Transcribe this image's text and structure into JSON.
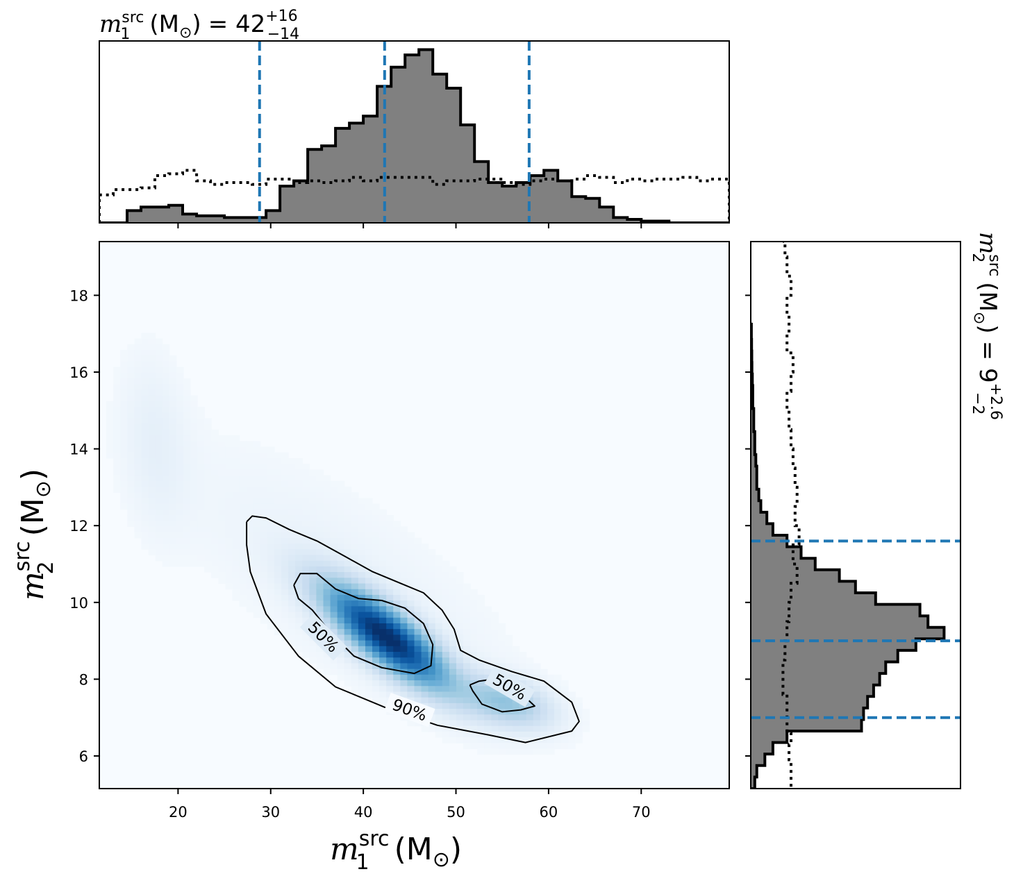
{
  "chart_data": [
    {
      "panel": "top-marginal",
      "type": "histogram",
      "title": {
        "symbol": "m",
        "superscript": "src",
        "subscript": "1",
        "unit": "(M",
        "unit_sub": "⊙",
        "unit_close": ")",
        "eq": "= 42",
        "plus": "+16",
        "minus": "−14"
      },
      "xlim": [
        11.5,
        79.5
      ],
      "x_ticks": [
        20,
        30,
        40,
        50,
        60,
        70
      ],
      "quantile_lines": [
        28.8,
        42.3,
        57.9
      ],
      "posterior": {
        "style": "filled-step",
        "bin_edges": [
          11.5,
          13,
          14.5,
          16,
          17.5,
          19,
          20.5,
          22,
          23.5,
          25,
          26.5,
          28,
          29.5,
          31,
          32.5,
          34,
          35.5,
          37,
          38.5,
          40,
          41.5,
          43,
          44.5,
          46,
          47.5,
          49,
          50.5,
          52,
          53.5,
          55,
          56.5,
          58,
          59.5,
          61,
          62.5,
          64,
          65.5,
          67,
          68.5,
          70,
          71.5,
          73,
          74.5,
          76,
          77.5,
          79.5
        ],
        "heights": [
          0,
          0,
          0.07,
          0.09,
          0.09,
          0.1,
          0.05,
          0.04,
          0.04,
          0.03,
          0.03,
          0.03,
          0.07,
          0.21,
          0.24,
          0.42,
          0.44,
          0.54,
          0.57,
          0.61,
          0.78,
          0.89,
          0.96,
          0.99,
          0.85,
          0.77,
          0.56,
          0.35,
          0.23,
          0.21,
          0.23,
          0.27,
          0.3,
          0.24,
          0.15,
          0.14,
          0.09,
          0.03,
          0.02,
          0.01,
          0.01,
          0,
          0,
          0,
          0
        ]
      },
      "prior": {
        "style": "dotted-step",
        "bin_edges": [
          11.5,
          13,
          14.5,
          16,
          17.5,
          19,
          20.5,
          22,
          23.5,
          25,
          26.5,
          28,
          29.5,
          31,
          32.5,
          34,
          35.5,
          37,
          38.5,
          40,
          41.5,
          43,
          44.5,
          46,
          47.5,
          49,
          50.5,
          52,
          53.5,
          55,
          56.5,
          58,
          59.5,
          61,
          62.5,
          64,
          65.5,
          67,
          68.5,
          70,
          71.5,
          73,
          74.5,
          76,
          77.5,
          79.5
        ],
        "heights": [
          0.16,
          0.19,
          0.19,
          0.2,
          0.27,
          0.28,
          0.3,
          0.24,
          0.22,
          0.23,
          0.23,
          0.22,
          0.25,
          0.25,
          0.23,
          0.24,
          0.23,
          0.24,
          0.26,
          0.24,
          0.26,
          0.26,
          0.26,
          0.26,
          0.22,
          0.24,
          0.24,
          0.25,
          0.25,
          0.23,
          0.22,
          0.24,
          0.25,
          0.24,
          0.25,
          0.27,
          0.26,
          0.23,
          0.25,
          0.24,
          0.25,
          0.25,
          0.26,
          0.24,
          0.25
        ]
      }
    },
    {
      "panel": "joint",
      "type": "heatmap",
      "xlabel": {
        "symbol": "m",
        "superscript": "src",
        "subscript": "1",
        "unit": "(M",
        "unit_sub": "⊙",
        "unit_close": ")"
      },
      "ylabel": {
        "symbol": "m",
        "superscript": "src",
        "subscript": "2",
        "unit": "(M",
        "unit_sub": "⊙",
        "unit_close": ")"
      },
      "xlim": [
        11.5,
        79.5
      ],
      "ylim": [
        5.15,
        19.4
      ],
      "x_ticks": [
        20,
        30,
        40,
        50,
        60,
        70
      ],
      "x_tick_labels": [
        "20",
        "30",
        "40",
        "50",
        "60",
        "70"
      ],
      "y_ticks": [
        6,
        8,
        10,
        12,
        14,
        16,
        18
      ],
      "y_tick_labels": [
        "6",
        "8",
        "10",
        "12",
        "14",
        "16",
        "18"
      ],
      "colormap": "Blues",
      "density_components": [
        {
          "mean": [
            42.5,
            9.1
          ],
          "sigma": [
            4.5,
            0.9
          ],
          "rho": -0.8,
          "weight": 1.0
        },
        {
          "mean": [
            55.5,
            7.4
          ],
          "sigma": [
            3.2,
            0.45
          ],
          "rho": -0.4,
          "weight": 0.32
        },
        {
          "mean": [
            17.5,
            14.2
          ],
          "sigma": [
            2.5,
            1.6
          ],
          "rho": -0.2,
          "weight": 0.05
        },
        {
          "mean": [
            38,
            10.5
          ],
          "sigma": [
            13,
            2.5
          ],
          "rho": -0.75,
          "weight": 0.04
        }
      ],
      "contours": [
        {
          "level": "90%",
          "points": [
            [
              27.4,
              12.1
            ],
            [
              28.0,
              12.25
            ],
            [
              29.5,
              12.2
            ],
            [
              32.0,
              11.9
            ],
            [
              35.0,
              11.6
            ],
            [
              38.0,
              11.2
            ],
            [
              41.0,
              10.8
            ],
            [
              44.0,
              10.5
            ],
            [
              46.5,
              10.25
            ],
            [
              48.5,
              9.8
            ],
            [
              49.8,
              9.3
            ],
            [
              50.5,
              8.75
            ],
            [
              52.5,
              8.5
            ],
            [
              56.0,
              8.2
            ],
            [
              59.5,
              7.95
            ],
            [
              62.5,
              7.4
            ],
            [
              63.3,
              6.9
            ],
            [
              62.5,
              6.65
            ],
            [
              57.5,
              6.35
            ],
            [
              53.5,
              6.55
            ],
            [
              48.0,
              6.8
            ],
            [
              42.5,
              7.25
            ],
            [
              37.0,
              7.8
            ],
            [
              33.0,
              8.6
            ],
            [
              29.5,
              9.7
            ],
            [
              27.8,
              10.8
            ],
            [
              27.4,
              11.5
            ],
            [
              27.4,
              12.1
            ]
          ],
          "label_at": [
            45.0,
            7.2
          ]
        },
        {
          "level": "50%",
          "points": [
            [
              32.5,
              10.45
            ],
            [
              33.2,
              10.75
            ],
            [
              35.0,
              10.75
            ],
            [
              37.0,
              10.35
            ],
            [
              39.5,
              10.1
            ],
            [
              42.0,
              10.05
            ],
            [
              44.5,
              9.85
            ],
            [
              46.5,
              9.45
            ],
            [
              47.5,
              8.9
            ],
            [
              47.3,
              8.35
            ],
            [
              45.5,
              8.15
            ],
            [
              42.0,
              8.3
            ],
            [
              39.0,
              8.6
            ],
            [
              36.5,
              9.2
            ],
            [
              34.5,
              9.8
            ],
            [
              33.0,
              10.1
            ],
            [
              32.5,
              10.45
            ]
          ],
          "label_at": [
            35.7,
            9.1
          ],
          "label_angle": 45
        },
        {
          "level": "50%",
          "points": [
            [
              51.5,
              7.85
            ],
            [
              52.5,
              7.95
            ],
            [
              54.0,
              8.0
            ],
            [
              56.5,
              7.75
            ],
            [
              58.5,
              7.3
            ],
            [
              57.0,
              7.2
            ],
            [
              55.0,
              7.15
            ],
            [
              52.8,
              7.35
            ],
            [
              51.8,
              7.7
            ],
            [
              51.5,
              7.85
            ]
          ],
          "label_at": [
            55.8,
            7.8
          ],
          "label_angle": 30
        }
      ]
    },
    {
      "panel": "right-marginal",
      "type": "histogram",
      "orientation": "horizontal",
      "title": {
        "symbol": "m",
        "superscript": "src",
        "subscript": "2",
        "unit": "(M",
        "unit_sub": "⊙",
        "unit_close": ")",
        "eq": "= 9",
        "plus": "+2.6",
        "minus": "−2"
      },
      "ylim": [
        5.15,
        19.4
      ],
      "y_ticks": [
        6,
        8,
        10,
        12,
        14,
        16,
        18
      ],
      "quantile_lines": [
        7.0,
        9.0,
        11.6
      ],
      "posterior": {
        "style": "filled-step",
        "bin_edges": [
          5.15,
          5.45,
          5.75,
          6.05,
          6.35,
          6.65,
          6.95,
          7.25,
          7.55,
          7.85,
          8.15,
          8.45,
          8.75,
          9.05,
          9.35,
          9.65,
          9.95,
          10.25,
          10.55,
          10.85,
          11.15,
          11.45,
          11.75,
          12.05,
          12.35,
          12.65,
          12.95,
          13.25,
          13.55,
          13.85,
          14.15,
          14.45,
          14.75,
          15.05,
          15.35,
          15.65,
          15.95,
          16.25,
          16.55,
          16.85,
          17.25
        ],
        "heights": [
          0.02,
          0.03,
          0.07,
          0.11,
          0.18,
          0.55,
          0.56,
          0.58,
          0.61,
          0.64,
          0.67,
          0.73,
          0.82,
          0.96,
          0.88,
          0.84,
          0.62,
          0.52,
          0.44,
          0.32,
          0.25,
          0.18,
          0.11,
          0.08,
          0.05,
          0.04,
          0.03,
          0.03,
          0.025,
          0.02,
          0.02,
          0.015,
          0.015,
          0.01,
          0.01,
          0.008,
          0.006,
          0.005,
          0.004,
          0.003
        ]
      },
      "prior": {
        "style": "dotted-step",
        "points": [
          [
            5.2,
            0.2
          ],
          [
            5.6,
            0.2
          ],
          [
            5.9,
            0.19
          ],
          [
            6.3,
            0.2
          ],
          [
            6.6,
            0.18
          ],
          [
            7.2,
            0.18
          ],
          [
            7.6,
            0.16
          ],
          [
            8.0,
            0.16
          ],
          [
            8.5,
            0.17
          ],
          [
            9.0,
            0.18
          ],
          [
            9.5,
            0.19
          ],
          [
            10.0,
            0.2
          ],
          [
            10.5,
            0.23
          ],
          [
            11.0,
            0.21
          ],
          [
            11.5,
            0.24
          ],
          [
            12.0,
            0.22
          ],
          [
            12.5,
            0.23
          ],
          [
            13.0,
            0.22
          ],
          [
            13.5,
            0.21
          ],
          [
            14.0,
            0.2
          ],
          [
            14.5,
            0.19
          ],
          [
            15.0,
            0.18
          ],
          [
            15.5,
            0.2
          ],
          [
            16.0,
            0.21
          ],
          [
            16.5,
            0.18
          ],
          [
            17.0,
            0.19
          ],
          [
            17.5,
            0.18
          ],
          [
            18.0,
            0.2
          ],
          [
            18.5,
            0.18
          ],
          [
            19.0,
            0.17
          ],
          [
            19.4,
            0.16
          ]
        ]
      }
    }
  ],
  "colors": {
    "posterior_fill": "#808080",
    "quantile_line": "#1f77b4",
    "outline": "#000000"
  }
}
